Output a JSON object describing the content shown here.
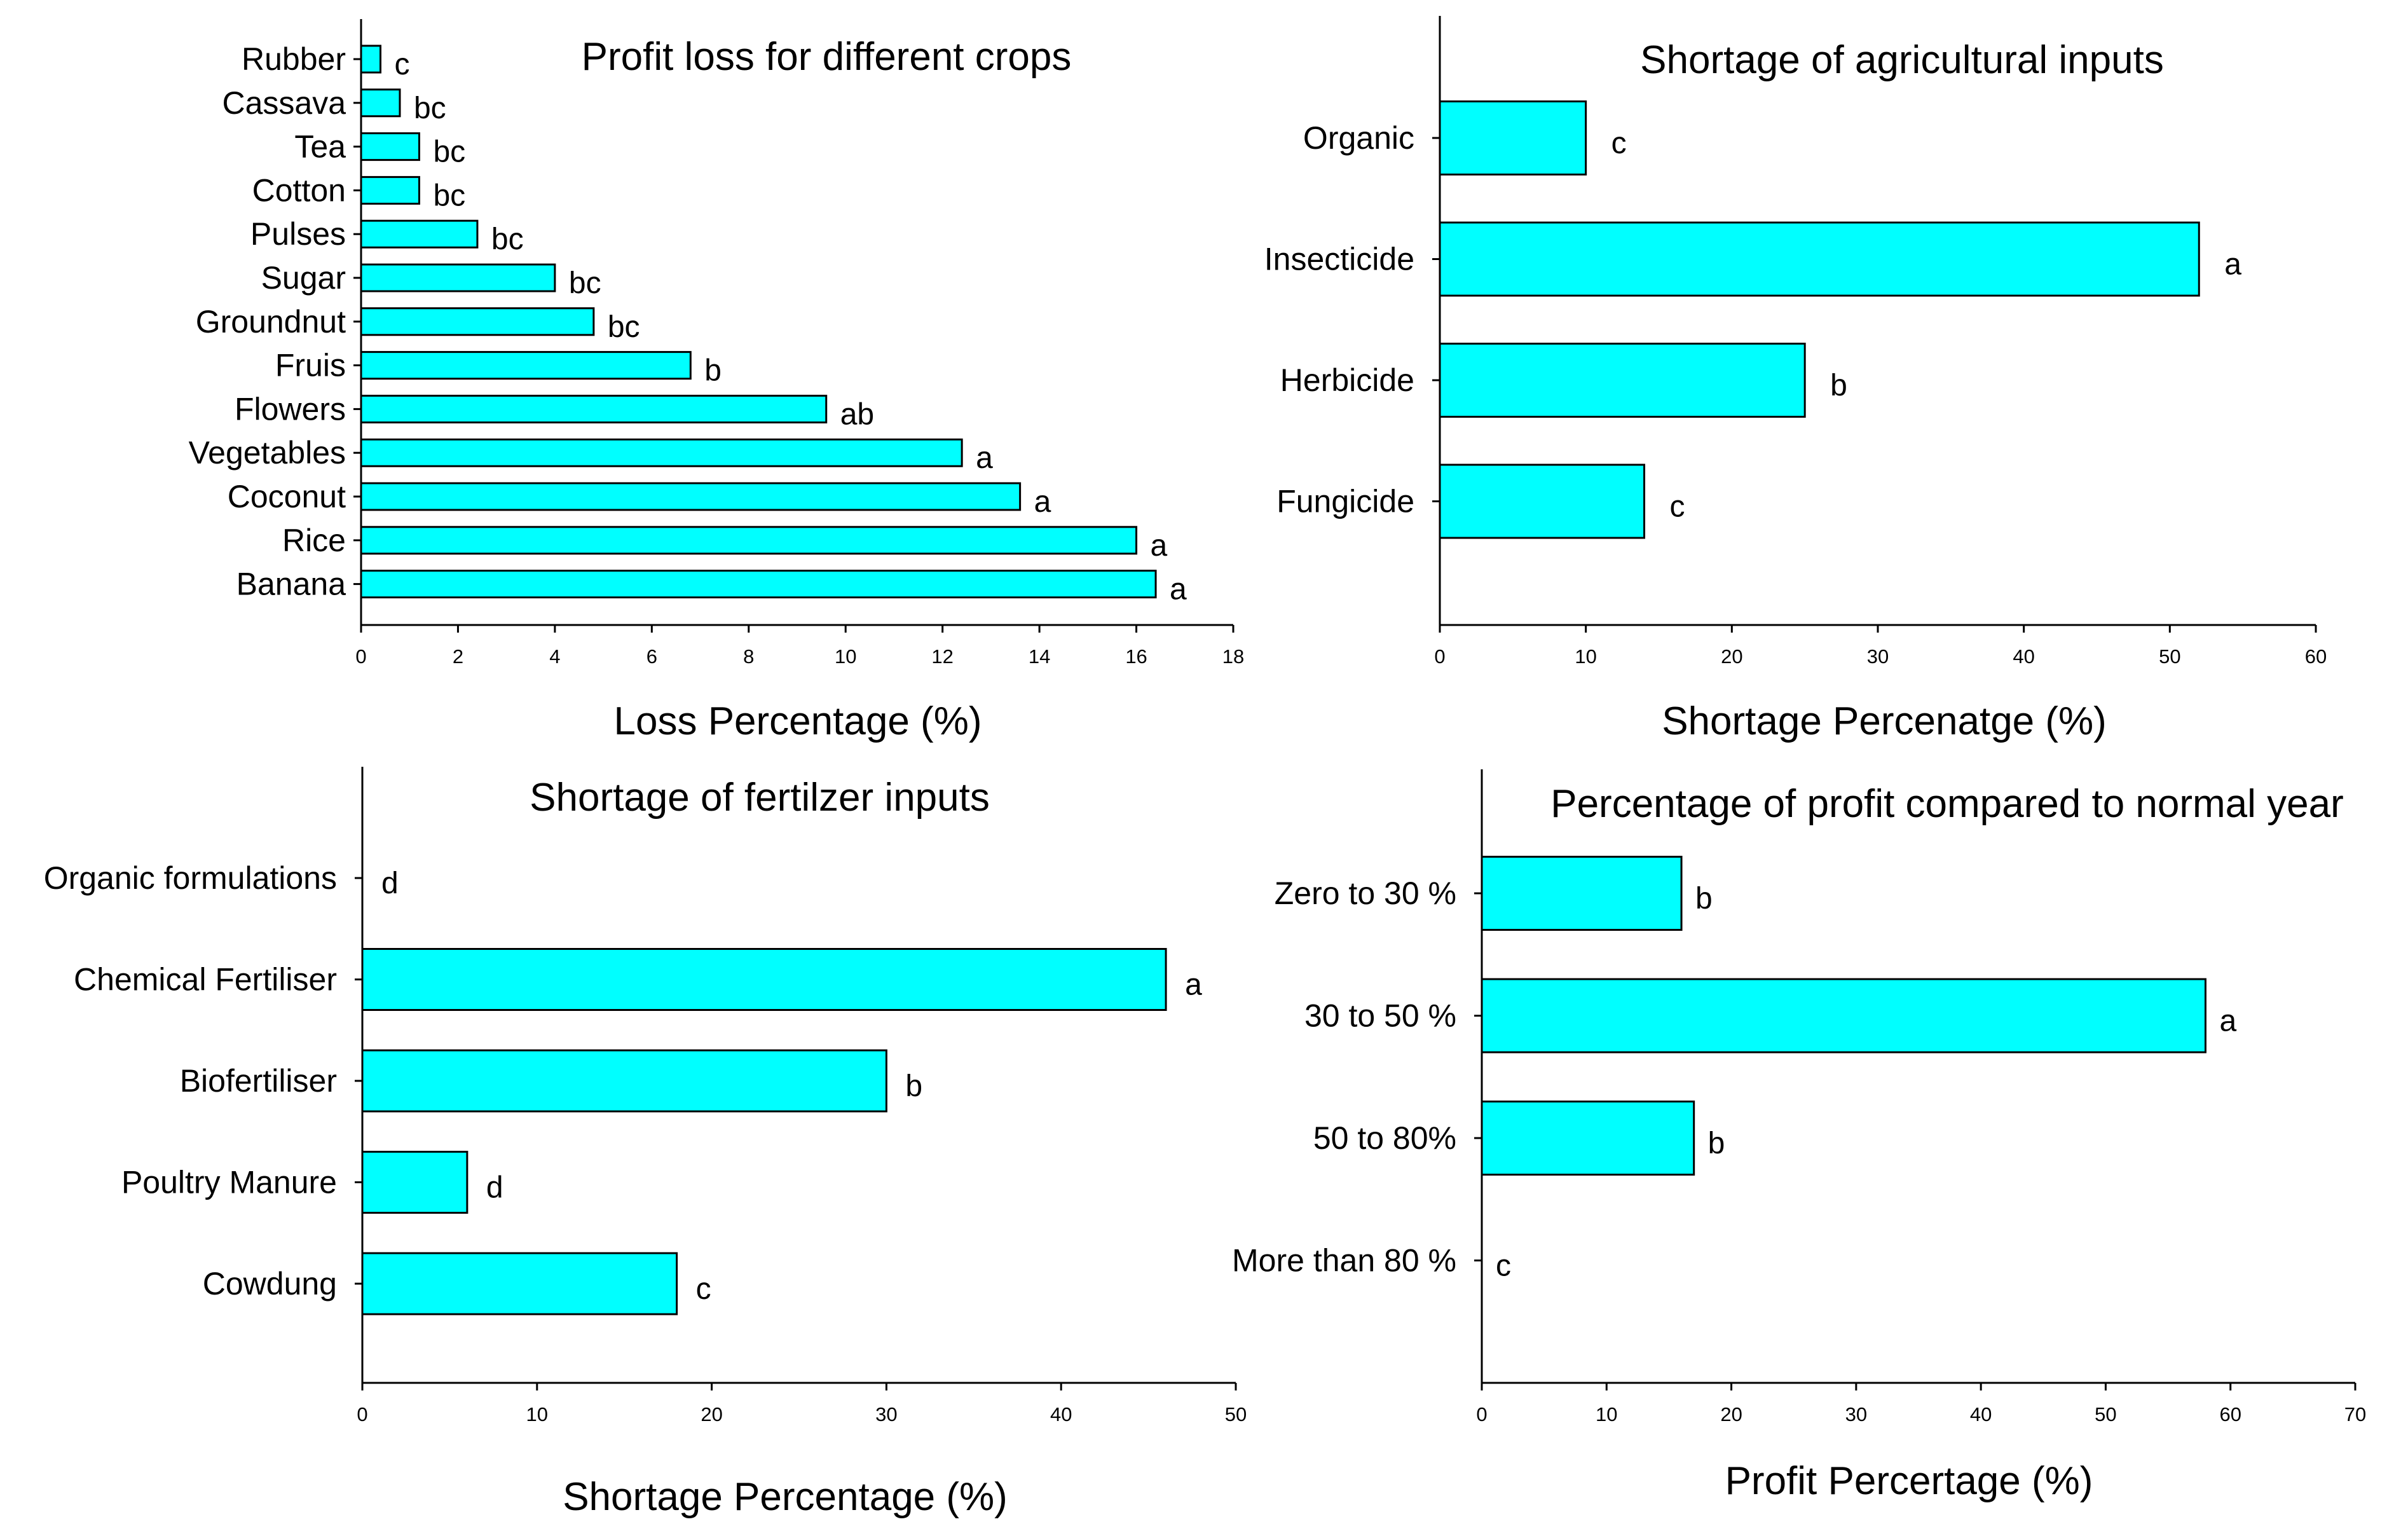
{
  "chart_data": [
    {
      "type": "bar",
      "orientation": "horizontal",
      "title": "Profit loss for different crops",
      "xlabel": "Loss  Percentage (%)",
      "ylabel": "",
      "xlim": [
        0,
        18
      ],
      "xticks": [
        0,
        2,
        4,
        6,
        8,
        10,
        12,
        14,
        16,
        18
      ],
      "categories": [
        "Rubber",
        "Cassava",
        "Tea",
        "Cotton",
        "Pulses",
        "Sugar",
        "Groundnut",
        "Fruis",
        "Flowers",
        "Vegetables",
        "Coconut",
        "Rice",
        "Banana"
      ],
      "values": [
        0.4,
        0.8,
        1.2,
        1.2,
        2.4,
        4.0,
        4.8,
        6.8,
        9.6,
        12.4,
        13.6,
        16.0,
        16.4
      ],
      "significance": [
        "c",
        "bc",
        "bc",
        "bc",
        "bc",
        "bc",
        "bc",
        "b",
        "ab",
        "a",
        "a",
        "a",
        "a"
      ],
      "bar_color": "#00ffff",
      "grid": false
    },
    {
      "type": "bar",
      "orientation": "horizontal",
      "title": "Shortage of agricultural inputs",
      "xlabel": "Shortage Percenatge (%)",
      "ylabel": "",
      "xlim": [
        0,
        60
      ],
      "xticks": [
        0,
        10,
        20,
        30,
        40,
        50,
        60
      ],
      "categories": [
        "Organic",
        "Insecticide",
        "Herbicide",
        "Fungicide"
      ],
      "values": [
        10,
        52,
        25,
        14
      ],
      "significance": [
        "c",
        "a",
        "b",
        "c"
      ],
      "bar_color": "#00ffff",
      "grid": false
    },
    {
      "type": "bar",
      "orientation": "horizontal",
      "title": "Shortage of fertilzer inputs",
      "xlabel": "Shortage Percentage (%)",
      "ylabel": "",
      "xlim": [
        0,
        50
      ],
      "xticks": [
        0,
        10,
        20,
        30,
        40,
        50
      ],
      "categories": [
        "Organic formulations",
        "Chemical Fertiliser",
        "Biofertiliser",
        "Poultry Manure",
        "Cowdung"
      ],
      "values": [
        0,
        46,
        30,
        6,
        18
      ],
      "significance": [
        "d",
        "a",
        "b",
        "d",
        "c"
      ],
      "bar_color": "#00ffff",
      "grid": false
    },
    {
      "type": "bar",
      "orientation": "horizontal",
      "title": "Percentage of profit compared to normal year",
      "xlabel": "Profit Percertage (%)",
      "ylabel": "",
      "xlim": [
        0,
        70
      ],
      "xticks": [
        0,
        10,
        20,
        30,
        40,
        50,
        60,
        70
      ],
      "categories": [
        "Zero to 30 %",
        "30 to 50 %",
        "50 to 80%",
        "More than 80 %"
      ],
      "values": [
        16,
        58,
        17,
        0
      ],
      "significance": [
        "b",
        "a",
        "b",
        "c"
      ],
      "bar_color": "#00ffff",
      "grid": false
    }
  ]
}
